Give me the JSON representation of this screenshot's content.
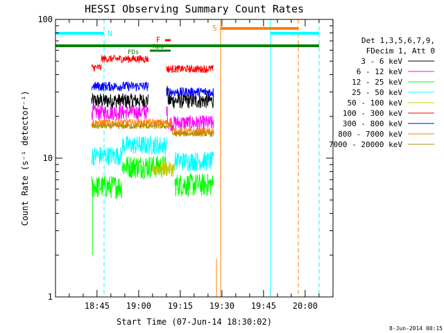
{
  "chart_data": {
    "type": "line",
    "title": "HESSI Observing Summary Count Rates",
    "xlabel": "Start Time (07-Jun-14 18:30:02)",
    "ylabel": "Count Rate (s⁻¹ detector⁻¹)",
    "yscale": "log",
    "ylim": [
      1,
      100
    ],
    "xlim_minutes": [
      0,
      100
    ],
    "y_ticks": [
      "1",
      "10",
      "100"
    ],
    "x_ticks": [
      "18:45",
      "19:00",
      "19:15",
      "19:30",
      "19:45",
      "20:00"
    ],
    "timestamp": "8-Jun-2014 00:15",
    "legend_title": [
      "Det 1,3,5,6,7,9,",
      "FDecim 1, Att 0"
    ],
    "grid": false,
    "flag_labels": {
      "night": "N",
      "saa": "S",
      "rdo": "RDO",
      "flare": "F",
      "fds": "FDs"
    },
    "flag_colors": {
      "night": "#00ffff",
      "saa": "#ff8000",
      "rdo": "#008000",
      "flare": "#ff0000",
      "fds": "#008000"
    },
    "series": [
      {
        "name": "3 - 6 keV",
        "color": "#000000",
        "segments": [
          {
            "x": [
              13,
              33.5
            ],
            "y": 26
          },
          {
            "x": [
              40,
              57
            ],
            "y": 26
          }
        ],
        "noise": 0.08,
        "peak": {
          "x": 39.5,
          "y": 38
        }
      },
      {
        "name": "6 - 12 keV",
        "color": "#ff00ff",
        "segments": [
          {
            "x": [
              13,
              33.5
            ],
            "y": 21.5
          },
          {
            "x": [
              40,
              57
            ],
            "y": 18
          }
        ],
        "noise": 0.08,
        "peak": {
          "x": 39.5,
          "y": 27
        }
      },
      {
        "name": "12 - 25 keV",
        "color": "#00ff00",
        "segments": [
          {
            "x": [
              13,
              24
            ],
            "y": 6.3
          },
          {
            "x": [
              24,
              40
            ],
            "y": 8.8
          },
          {
            "x": [
              43,
              57
            ],
            "y": 6.5
          }
        ],
        "noise": 0.12
      },
      {
        "name": "25 - 50 keV",
        "color": "#00ffff",
        "segments": [
          {
            "x": [
              13,
              24
            ],
            "y": 10.5
          },
          {
            "x": [
              24,
              40
            ],
            "y": 12.5
          },
          {
            "x": [
              43,
              57
            ],
            "y": 9.6
          }
        ],
        "noise": 0.1
      },
      {
        "name": "50 - 100 keV",
        "color": "#c8c800",
        "segments": [
          {
            "x": [
              35,
              43
            ],
            "y": 8.4
          }
        ],
        "noise": 0.08
      },
      {
        "name": "100 - 300 keV",
        "color": "#ff0000",
        "segments": [
          {
            "x": [
              13,
              16.5
            ],
            "y": 45
          },
          {
            "x": [
              16.5,
              33.5
            ],
            "y": 52
          },
          {
            "x": [
              40,
              57
            ],
            "y": 44
          }
        ],
        "noise": 0.04
      },
      {
        "name": "300 - 800 keV",
        "color": "#0000ff",
        "segments": [
          {
            "x": [
              13,
              33.5
            ],
            "y": 33
          },
          {
            "x": [
              40,
              57
            ],
            "y": 30
          }
        ],
        "noise": 0.05
      },
      {
        "name": "800 - 7000 keV",
        "color": "#ff8000",
        "segments": [
          {
            "x": [
              13,
              42
            ],
            "y": 18
          },
          {
            "x": [
              42,
              57
            ],
            "y": 15.5
          }
        ],
        "noise": 0.04
      },
      {
        "name": "7000 - 20000 keV",
        "color": "#b48c00",
        "segments": [
          {
            "x": [
              13,
              42
            ],
            "y": 17
          },
          {
            "x": [
              42,
              57
            ],
            "y": 15
          }
        ],
        "noise": 0.03
      }
    ]
  }
}
